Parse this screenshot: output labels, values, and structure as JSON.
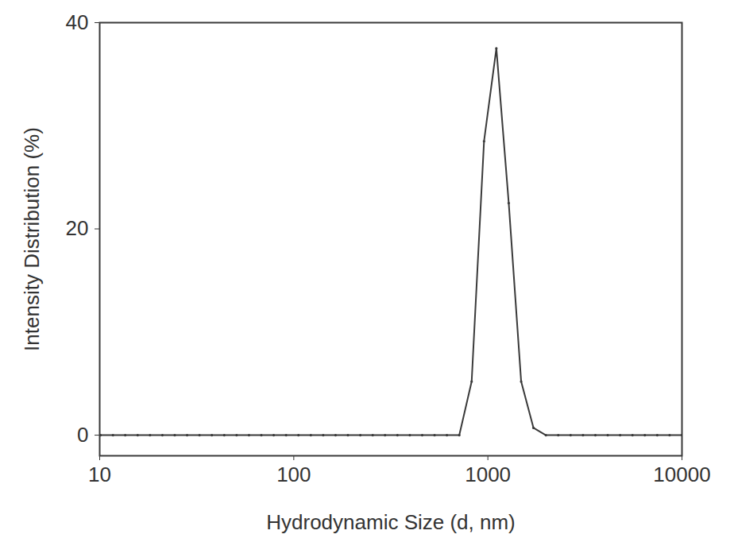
{
  "chart_data": {
    "type": "line",
    "x_label": "Hydrodynamic Size (d, nm)",
    "y_label": "Intensity Distribution (%)",
    "x": [
      10.1,
      11.7,
      13.54,
      15.69,
      18.17,
      21.04,
      24.36,
      28.21,
      32.67,
      37.84,
      43.82,
      50.75,
      58.77,
      68.06,
      78.82,
      91.28,
      105.7,
      122.4,
      141.8,
      164.2,
      190.1,
      220.2,
      255,
      295.3,
      342,
      396.1,
      458.7,
      531.2,
      615.1,
      712.4,
      825,
      955.4,
      1106,
      1281,
      1484,
      1718,
      1990,
      2305,
      2669,
      3091,
      3580,
      4145,
      4801,
      5560,
      6439,
      7456,
      8635,
      10000
    ],
    "values": [
      0,
      0,
      0,
      0,
      0,
      0,
      0,
      0,
      0,
      0,
      0,
      0,
      0,
      0,
      0,
      0,
      0,
      0,
      0,
      0,
      0,
      0,
      0,
      0,
      0,
      0,
      0,
      0,
      0,
      0,
      5.2,
      28.5,
      37.5,
      22.5,
      5.2,
      0.7,
      0,
      0,
      0,
      0,
      0,
      0,
      0,
      0,
      0,
      0,
      0,
      0
    ],
    "color": "#3a3a3a",
    "marker": "circle",
    "log": "x",
    "grid": false,
    "xlim": [
      10,
      10000
    ],
    "ylim": [
      -2,
      40
    ],
    "xticks": [
      10,
      100,
      1000,
      10000
    ],
    "yticks": [
      0,
      20,
      40
    ]
  }
}
